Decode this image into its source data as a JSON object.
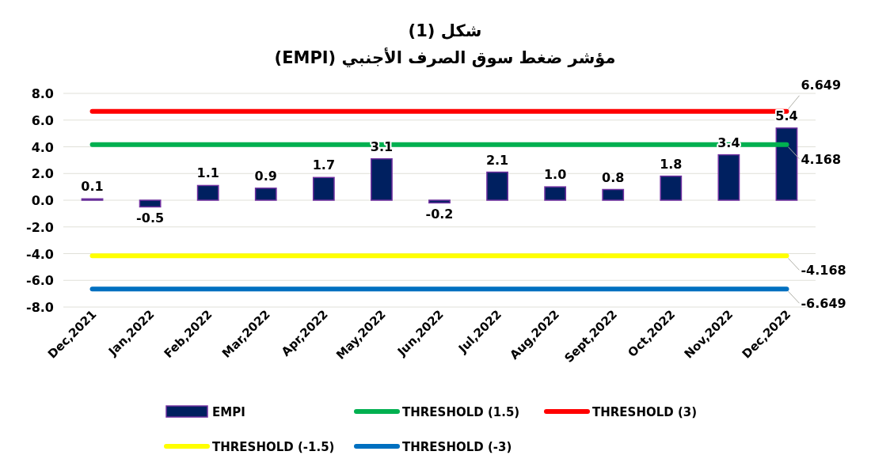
{
  "chart_data": {
    "type": "bar",
    "title": "شكل (1)\nمؤشر ضغط سوق الصرف الأجنبي (EMPI)",
    "categories": [
      "Dec,2021",
      "Jan,2022",
      "Feb,2022",
      "Mar,2022",
      "Apr,2022",
      "May,2022",
      "Jun,2022",
      "Jul,2022",
      "Aug,2022",
      "Sept,2022",
      "Oct,2022",
      "Nov,2022",
      "Dec,2022"
    ],
    "series": [
      {
        "name": "EMPI",
        "color": "#002060",
        "values": [
          0.1,
          -0.5,
          1.1,
          0.9,
          1.7,
          3.1,
          -0.2,
          2.1,
          1.0,
          0.8,
          1.8,
          3.4,
          5.4
        ],
        "value_labels": [
          "0.1",
          "-0.5",
          "1.1",
          "0.9",
          "1.7",
          "3.1",
          "-0.2",
          "2.1",
          "1.0",
          "0.8",
          "1.8",
          "3.4",
          "5.4"
        ]
      },
      {
        "name": "THRESHOLD (1.5)",
        "type": "line",
        "color": "#00b050",
        "values": [
          4.168,
          4.168,
          4.168,
          4.168,
          4.168,
          4.168,
          4.168,
          4.168,
          4.168,
          4.168,
          4.168,
          4.168,
          4.168
        ],
        "value_labels": [
          null,
          null,
          null,
          null,
          null,
          null,
          null,
          null,
          null,
          null,
          null,
          null,
          "4.168"
        ]
      },
      {
        "name": "THRESHOLD (3)",
        "type": "line",
        "color": "#ff0000",
        "values": [
          6.649,
          6.649,
          6.649,
          6.649,
          6.649,
          6.649,
          6.649,
          6.649,
          6.649,
          6.649,
          6.649,
          6.649,
          6.649
        ],
        "value_labels": [
          null,
          null,
          null,
          null,
          null,
          null,
          null,
          null,
          null,
          null,
          null,
          null,
          "6.649"
        ]
      },
      {
        "name": "THRESHOLD (-1.5)",
        "type": "line",
        "color": "#ffff00",
        "values": [
          -4.168,
          -4.168,
          -4.168,
          -4.168,
          -4.168,
          -4.168,
          -4.168,
          -4.168,
          -4.168,
          -4.168,
          -4.168,
          -4.168,
          -4.168
        ],
        "value_labels": [
          null,
          null,
          null,
          null,
          null,
          null,
          null,
          null,
          null,
          null,
          null,
          null,
          "-4.168"
        ]
      },
      {
        "name": "THRESHOLD (-3)",
        "type": "line",
        "color": "#0070c0",
        "values": [
          -6.649,
          -6.649,
          -6.649,
          -6.649,
          -6.649,
          -6.649,
          -6.649,
          -6.649,
          -6.649,
          -6.649,
          -6.649,
          -6.649,
          -6.649
        ],
        "value_labels": [
          null,
          null,
          null,
          null,
          null,
          null,
          null,
          null,
          null,
          null,
          null,
          null,
          "-6.649"
        ]
      }
    ],
    "ylim": [
      -8,
      8
    ],
    "yticks": [
      {
        "value": -8,
        "label": "-8.0"
      },
      {
        "value": -6,
        "label": "-6.0"
      },
      {
        "value": -4,
        "label": "-4.0"
      },
      {
        "value": -2,
        "label": "-2.0"
      },
      {
        "value": 0,
        "label": "0.0"
      },
      {
        "value": 2,
        "label": "2.0"
      },
      {
        "value": 4,
        "label": "4.0"
      },
      {
        "value": 6,
        "label": "6.0"
      },
      {
        "value": 8,
        "label": "8.0"
      }
    ],
    "grid": "y",
    "legend": "bottom",
    "line_style": "solid",
    "marker": "none"
  }
}
